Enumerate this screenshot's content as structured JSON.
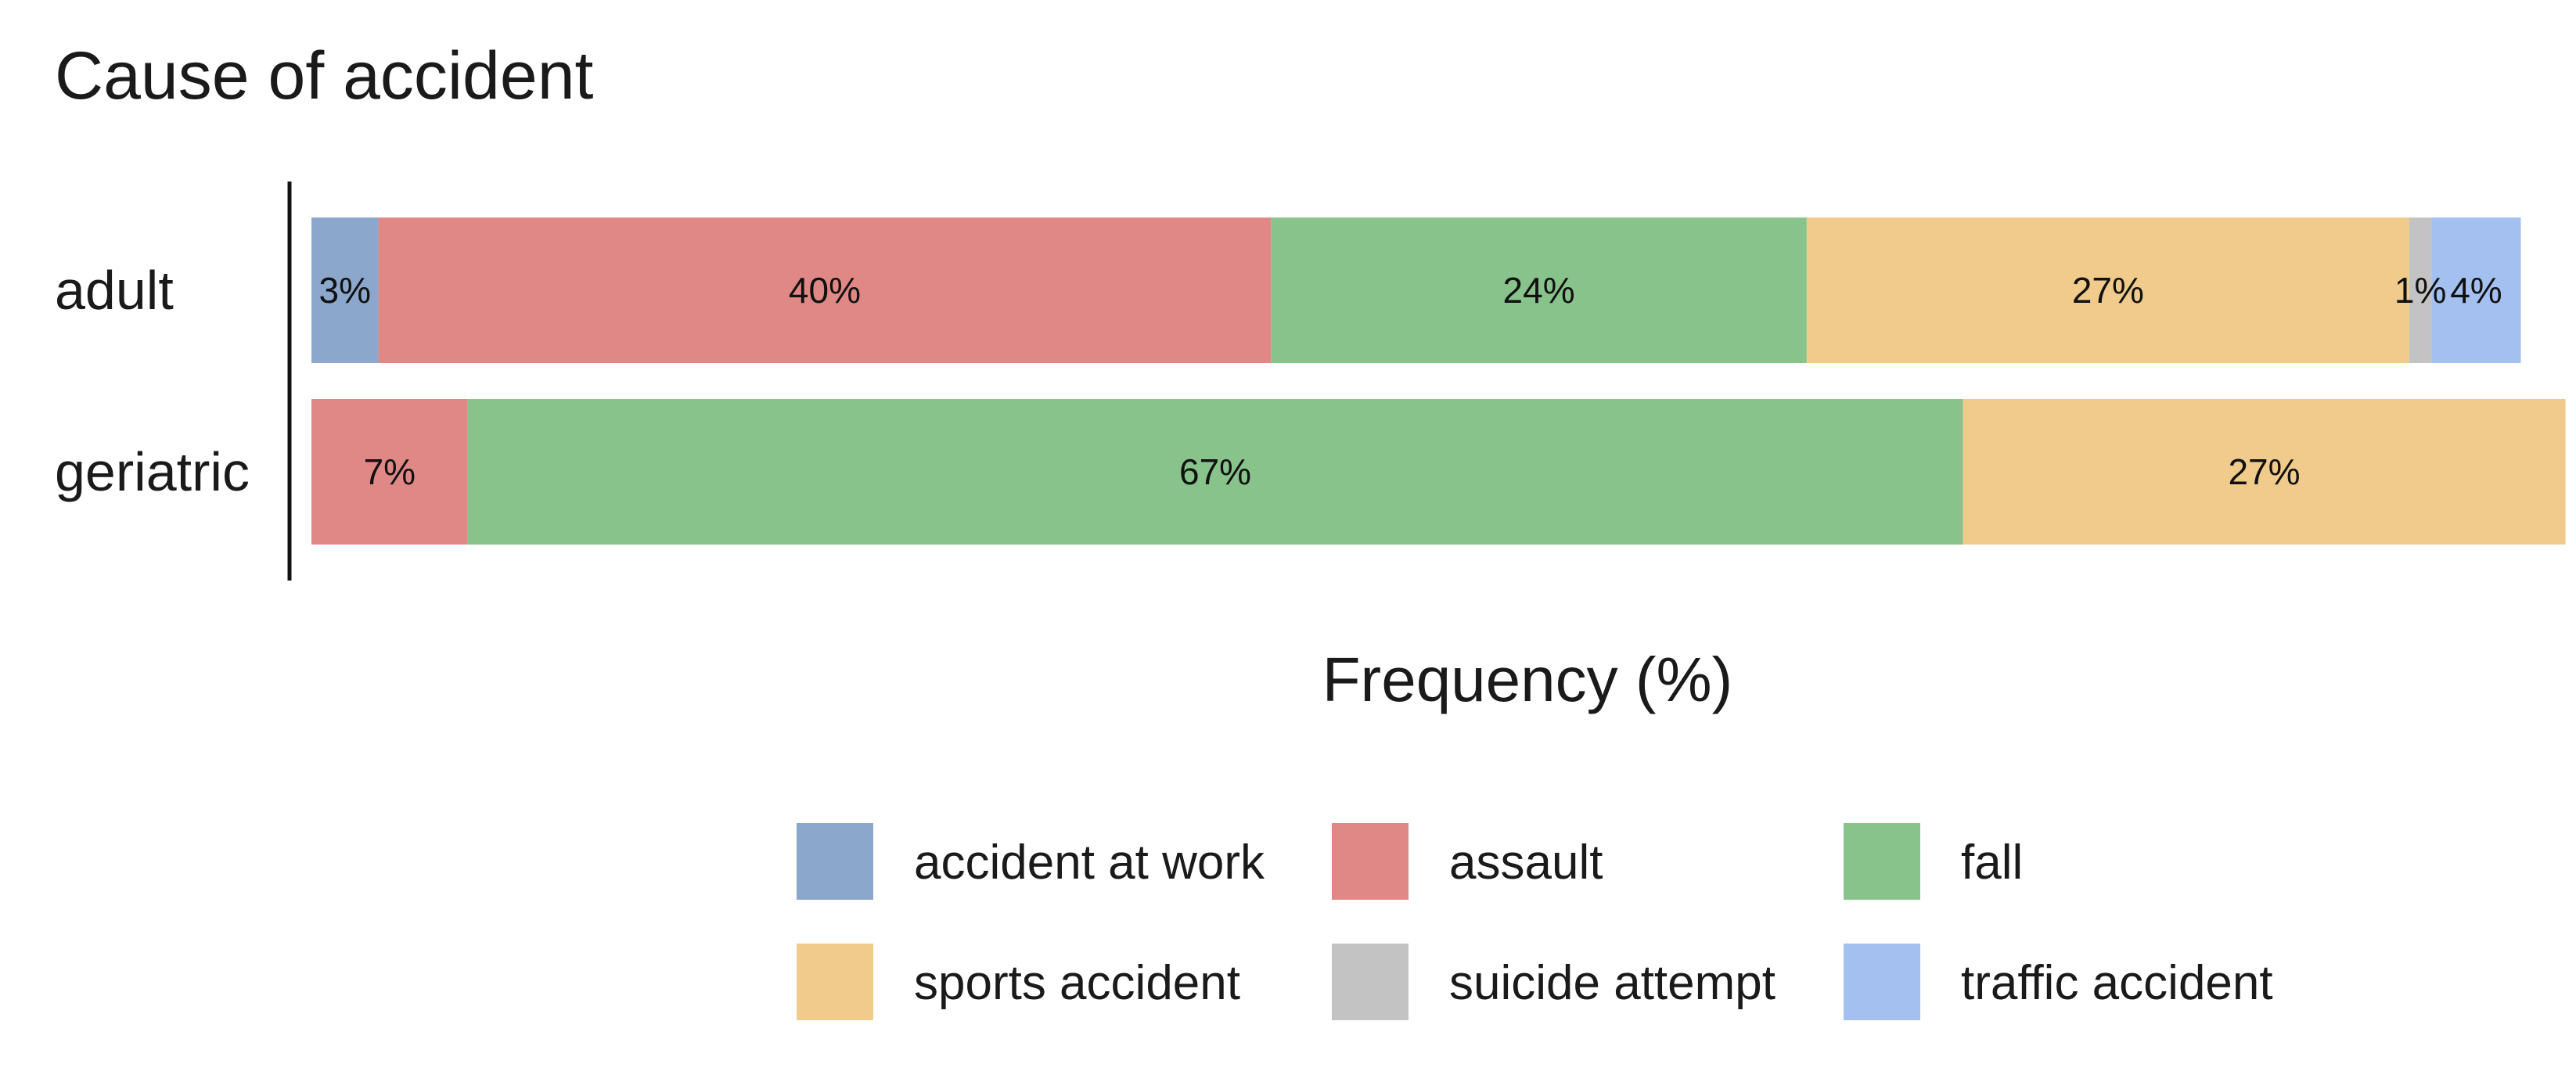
{
  "chart_data": {
    "type": "bar",
    "orientation": "horizontal",
    "stacked": true,
    "title": "Cause of accident",
    "xlabel": "Frequency (%)",
    "ylabel": "",
    "xlim": [
      0,
      100
    ],
    "grid": false,
    "legend_position": "bottom",
    "categories": [
      "adult",
      "geriatric"
    ],
    "series": [
      {
        "name": "accident at work",
        "color": "#8ba7cb",
        "values": [
          3,
          0
        ],
        "labels": [
          "3%",
          ""
        ]
      },
      {
        "name": "assault",
        "color": "#e08886",
        "values": [
          40,
          7
        ],
        "labels": [
          "40%",
          "7%"
        ]
      },
      {
        "name": "fall",
        "color": "#87c38a",
        "values": [
          24,
          67
        ],
        "labels": [
          "24%",
          "67%"
        ]
      },
      {
        "name": "sports accident",
        "color": "#f0cb8b",
        "values": [
          27,
          27
        ],
        "labels": [
          "27%",
          "27%"
        ]
      },
      {
        "name": "suicide attempt",
        "color": "#c3c3c3",
        "values": [
          1,
          0
        ],
        "labels": [
          "1%",
          ""
        ]
      },
      {
        "name": "traffic accident",
        "color": "#a3c0f0",
        "values": [
          4,
          0
        ],
        "labels": [
          "4%",
          ""
        ]
      }
    ]
  }
}
